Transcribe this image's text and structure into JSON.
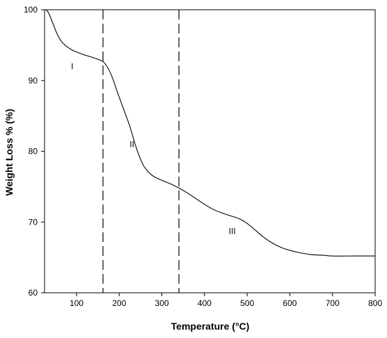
{
  "chart_data": {
    "type": "line",
    "title": "",
    "xlabel": "Temperature (°C)",
    "ylabel": "Weight Loss % (%)",
    "xlim": [
      25,
      800
    ],
    "ylim": [
      60,
      100
    ],
    "x_ticks": [
      100,
      200,
      300,
      400,
      500,
      600,
      700,
      800
    ],
    "y_ticks": [
      60,
      70,
      80,
      90,
      100
    ],
    "grid": false,
    "legend": "none",
    "series": [
      {
        "color": "#000000",
        "x": [
          28,
          35,
          45,
          55,
          65,
          75,
          90,
          110,
          130,
          150,
          165,
          180,
          195,
          210,
          225,
          240,
          255,
          265,
          275,
          285,
          300,
          320,
          340,
          360,
          380,
          400,
          420,
          440,
          460,
          480,
          500,
          520,
          540,
          560,
          580,
          600,
          620,
          650,
          680,
          700,
          750,
          800
        ],
        "y": [
          100.0,
          99.5,
          98.0,
          96.5,
          95.5,
          94.9,
          94.3,
          93.8,
          93.4,
          93.0,
          92.5,
          91.0,
          88.5,
          86.0,
          83.5,
          80.5,
          78.2,
          77.3,
          76.7,
          76.3,
          75.9,
          75.4,
          74.8,
          74.1,
          73.3,
          72.5,
          71.8,
          71.3,
          70.9,
          70.5,
          69.8,
          68.8,
          67.8,
          67.0,
          66.4,
          66.0,
          65.7,
          65.4,
          65.3,
          65.2,
          65.2,
          65.2
        ]
      }
    ],
    "vlines": [
      {
        "x": 162,
        "style": "dashed"
      },
      {
        "x": 340,
        "style": "dashed"
      }
    ],
    "annotations": [
      {
        "text": "I",
        "x": 90,
        "y": 91.6
      },
      {
        "text": "II",
        "x": 230,
        "y": 80.6
      },
      {
        "text": "III",
        "x": 465,
        "y": 68.3
      }
    ]
  }
}
